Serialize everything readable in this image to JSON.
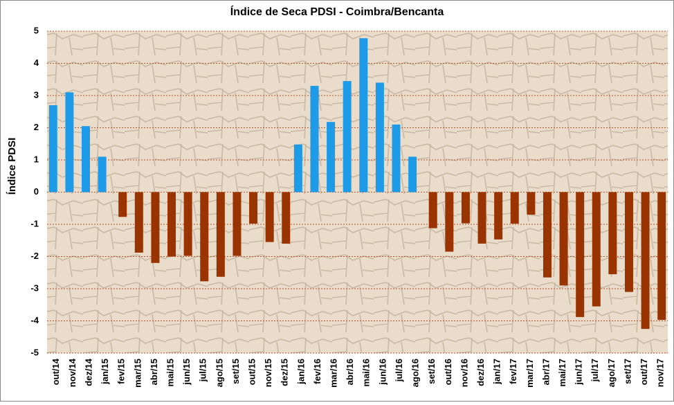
{
  "chart_data": {
    "type": "bar",
    "title": "Índice de Seca PDSI - Coimbra/Bencanta",
    "y_label": "Índice PDSI",
    "categories": [
      "out/14",
      "nov/14",
      "dez/14",
      "jan/15",
      "fev/15",
      "mar/15",
      "abr/15",
      "mai/15",
      "jun/15",
      "jul/15",
      "ago/15",
      "set/15",
      "out/15",
      "nov/15",
      "dez/15",
      "jan/16",
      "fev/16",
      "mar/16",
      "abr/16",
      "mai/16",
      "jun/16",
      "jul/16",
      "ago/16",
      "set/16",
      "out/16",
      "nov/16",
      "dez/16",
      "jan/17",
      "fev/17",
      "mar/17",
      "abr/17",
      "mai/17",
      "jun/17",
      "jul/17",
      "ago/17",
      "set/17",
      "out/17",
      "nov/17"
    ],
    "values": [
      2.7,
      3.1,
      2.05,
      1.1,
      -0.77,
      -1.88,
      -2.2,
      -2.0,
      -1.98,
      -2.77,
      -2.63,
      -1.98,
      -0.98,
      -1.55,
      -1.6,
      1.48,
      3.3,
      2.18,
      3.45,
      4.78,
      3.4,
      2.1,
      1.1,
      -1.12,
      -1.85,
      -0.97,
      -1.6,
      -1.47,
      -0.98,
      -0.7,
      -2.65,
      -2.9,
      -3.88,
      -3.55,
      -2.55,
      -3.1,
      -4.25,
      -3.97
    ],
    "color_positive": "#1e9be8",
    "color_negative": "#993300",
    "ylim": [
      -5,
      5
    ],
    "yticks": [
      -5,
      -4,
      -3,
      -2,
      -1,
      0,
      1,
      2,
      3,
      4,
      5
    ],
    "grid": true
  }
}
